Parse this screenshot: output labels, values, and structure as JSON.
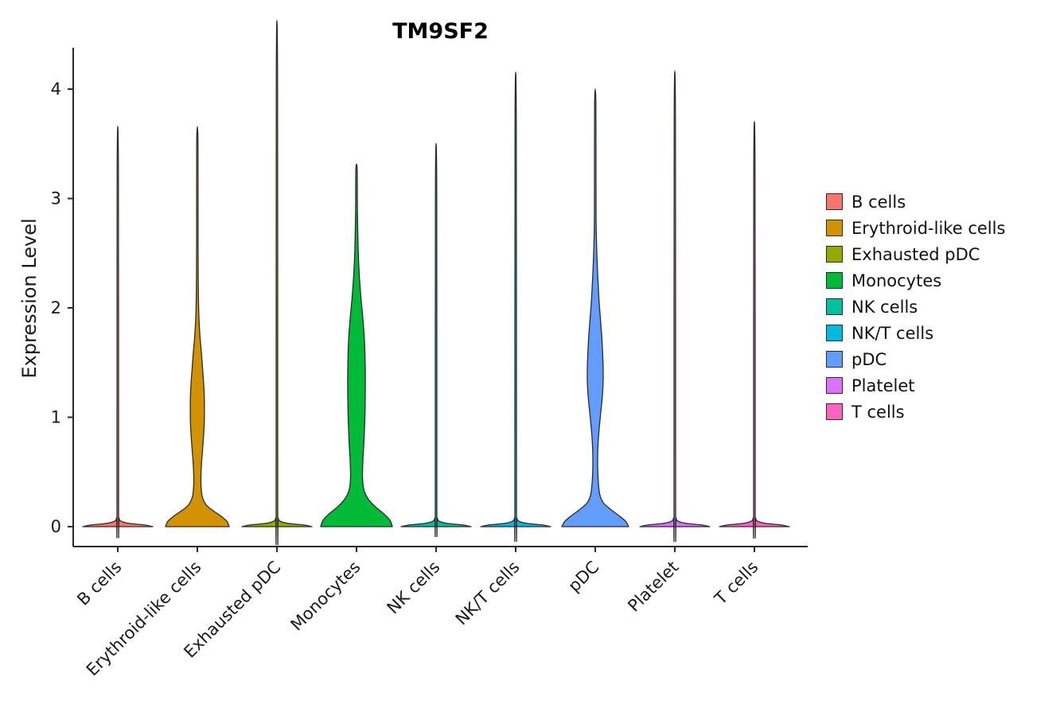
{
  "figure": {
    "title": "TM9SF2",
    "y_axis_label": "Expression Level"
  },
  "chart_data": {
    "type": "violin",
    "title": "TM9SF2",
    "xlabel": "",
    "ylabel": "Expression Level",
    "ylim": [
      -0.18,
      4.36
    ],
    "yticks": [
      0,
      1,
      2,
      3,
      4
    ],
    "x_tick_rotation": 45,
    "grid": false,
    "legend_position": "right",
    "outline_color": "#2b2b2b",
    "axis_color": "#2b2b2b",
    "categories": [
      "B cells",
      "Erythroid-like cells",
      "Exhausted pDC",
      "Monocytes",
      "NK cells",
      "NK/T cells",
      "pDC",
      "Platelet",
      "T cells"
    ],
    "series": [
      {
        "name": "B cells",
        "color": "#F8766D",
        "max_expression": 3.27,
        "shape": "zero-inflated spike",
        "profile": [
          [
            0,
            44
          ],
          [
            0.015,
            34
          ],
          [
            0.03,
            14
          ],
          [
            0.05,
            4
          ],
          [
            0.08,
            1.6
          ],
          [
            0.15,
            1
          ],
          [
            3.27,
            0.8
          ]
        ]
      },
      {
        "name": "Erythroid-like cells",
        "color": "#D39200",
        "max_expression": 3.54,
        "shape": "bimodal: base bulge at 0 and bulge near 0.5-1.8",
        "profile": [
          [
            0,
            40
          ],
          [
            0.05,
            37
          ],
          [
            0.1,
            29
          ],
          [
            0.15,
            19
          ],
          [
            0.2,
            11
          ],
          [
            0.28,
            6
          ],
          [
            0.4,
            4.5
          ],
          [
            0.55,
            5
          ],
          [
            0.7,
            6.5
          ],
          [
            0.85,
            8
          ],
          [
            1.0,
            8.8
          ],
          [
            1.15,
            8.8
          ],
          [
            1.3,
            8
          ],
          [
            1.45,
            6.5
          ],
          [
            1.6,
            5
          ],
          [
            1.75,
            3.2
          ],
          [
            1.95,
            1.8
          ],
          [
            2.2,
            1.2
          ],
          [
            2.6,
            0.9
          ],
          [
            3.54,
            0.8
          ]
        ]
      },
      {
        "name": "Exhausted pDC",
        "color": "#93AA00",
        "max_expression": 4.13,
        "shape": "zero-inflated spike",
        "profile": [
          [
            0,
            44
          ],
          [
            0.015,
            34
          ],
          [
            0.03,
            14
          ],
          [
            0.05,
            4
          ],
          [
            0.08,
            1.6
          ],
          [
            0.15,
            1
          ],
          [
            4.13,
            0.8
          ]
        ]
      },
      {
        "name": "Monocytes",
        "color": "#00BA38",
        "max_expression": 3.27,
        "shape": "bimodal: base bulge at 0 and bulge near 0.5-2.4",
        "profile": [
          [
            0,
            45
          ],
          [
            0.06,
            42
          ],
          [
            0.12,
            34
          ],
          [
            0.18,
            24
          ],
          [
            0.25,
            15
          ],
          [
            0.33,
            9.5
          ],
          [
            0.45,
            7.5
          ],
          [
            0.6,
            8
          ],
          [
            0.8,
            9.5
          ],
          [
            1.0,
            10.5
          ],
          [
            1.2,
            11
          ],
          [
            1.45,
            11
          ],
          [
            1.7,
            10
          ],
          [
            1.9,
            8
          ],
          [
            2.1,
            5.5
          ],
          [
            2.3,
            3.5
          ],
          [
            2.55,
            2
          ],
          [
            2.9,
            1.1
          ],
          [
            3.27,
            0.8
          ]
        ]
      },
      {
        "name": "NK cells",
        "color": "#00C19F",
        "max_expression": 3.13,
        "shape": "zero-inflated spike",
        "profile": [
          [
            0,
            44
          ],
          [
            0.015,
            34
          ],
          [
            0.03,
            14
          ],
          [
            0.05,
            4
          ],
          [
            0.08,
            1.6
          ],
          [
            0.15,
            1
          ],
          [
            3.13,
            0.8
          ]
        ]
      },
      {
        "name": "NK/T cells",
        "color": "#00B9E3",
        "max_expression": 3.71,
        "shape": "zero-inflated spike",
        "profile": [
          [
            0,
            44
          ],
          [
            0.015,
            34
          ],
          [
            0.03,
            14
          ],
          [
            0.05,
            4
          ],
          [
            0.08,
            1.6
          ],
          [
            0.15,
            1
          ],
          [
            3.71,
            0.8
          ]
        ]
      },
      {
        "name": "pDC",
        "color": "#619CFF",
        "max_expression": 3.88,
        "shape": "bimodal: base bulge at 0 and bulge near 0.9-2.5",
        "profile": [
          [
            0,
            42
          ],
          [
            0.05,
            38
          ],
          [
            0.1,
            30
          ],
          [
            0.16,
            19
          ],
          [
            0.22,
            10
          ],
          [
            0.3,
            5.5
          ],
          [
            0.45,
            3.5
          ],
          [
            0.6,
            3
          ],
          [
            0.75,
            3.5
          ],
          [
            0.9,
            5
          ],
          [
            1.05,
            7
          ],
          [
            1.2,
            9
          ],
          [
            1.35,
            10
          ],
          [
            1.5,
            9.8
          ],
          [
            1.7,
            8.5
          ],
          [
            1.9,
            6.5
          ],
          [
            2.1,
            4.5
          ],
          [
            2.35,
            2.8
          ],
          [
            2.6,
            1.6
          ],
          [
            2.9,
            1
          ],
          [
            3.88,
            0.8
          ]
        ]
      },
      {
        "name": "Platelet",
        "color": "#DB72FB",
        "max_expression": 3.72,
        "shape": "zero-inflated spike",
        "profile": [
          [
            0,
            44
          ],
          [
            0.015,
            34
          ],
          [
            0.03,
            14
          ],
          [
            0.05,
            4
          ],
          [
            0.08,
            1.6
          ],
          [
            0.15,
            1
          ],
          [
            3.72,
            0.8
          ]
        ]
      },
      {
        "name": "T cells",
        "color": "#FF61C3",
        "max_expression": 3.31,
        "shape": "zero-inflated spike",
        "profile": [
          [
            0,
            44
          ],
          [
            0.015,
            34
          ],
          [
            0.03,
            14
          ],
          [
            0.05,
            4
          ],
          [
            0.08,
            1.6
          ],
          [
            0.15,
            1
          ],
          [
            3.31,
            0.8
          ]
        ]
      }
    ]
  }
}
